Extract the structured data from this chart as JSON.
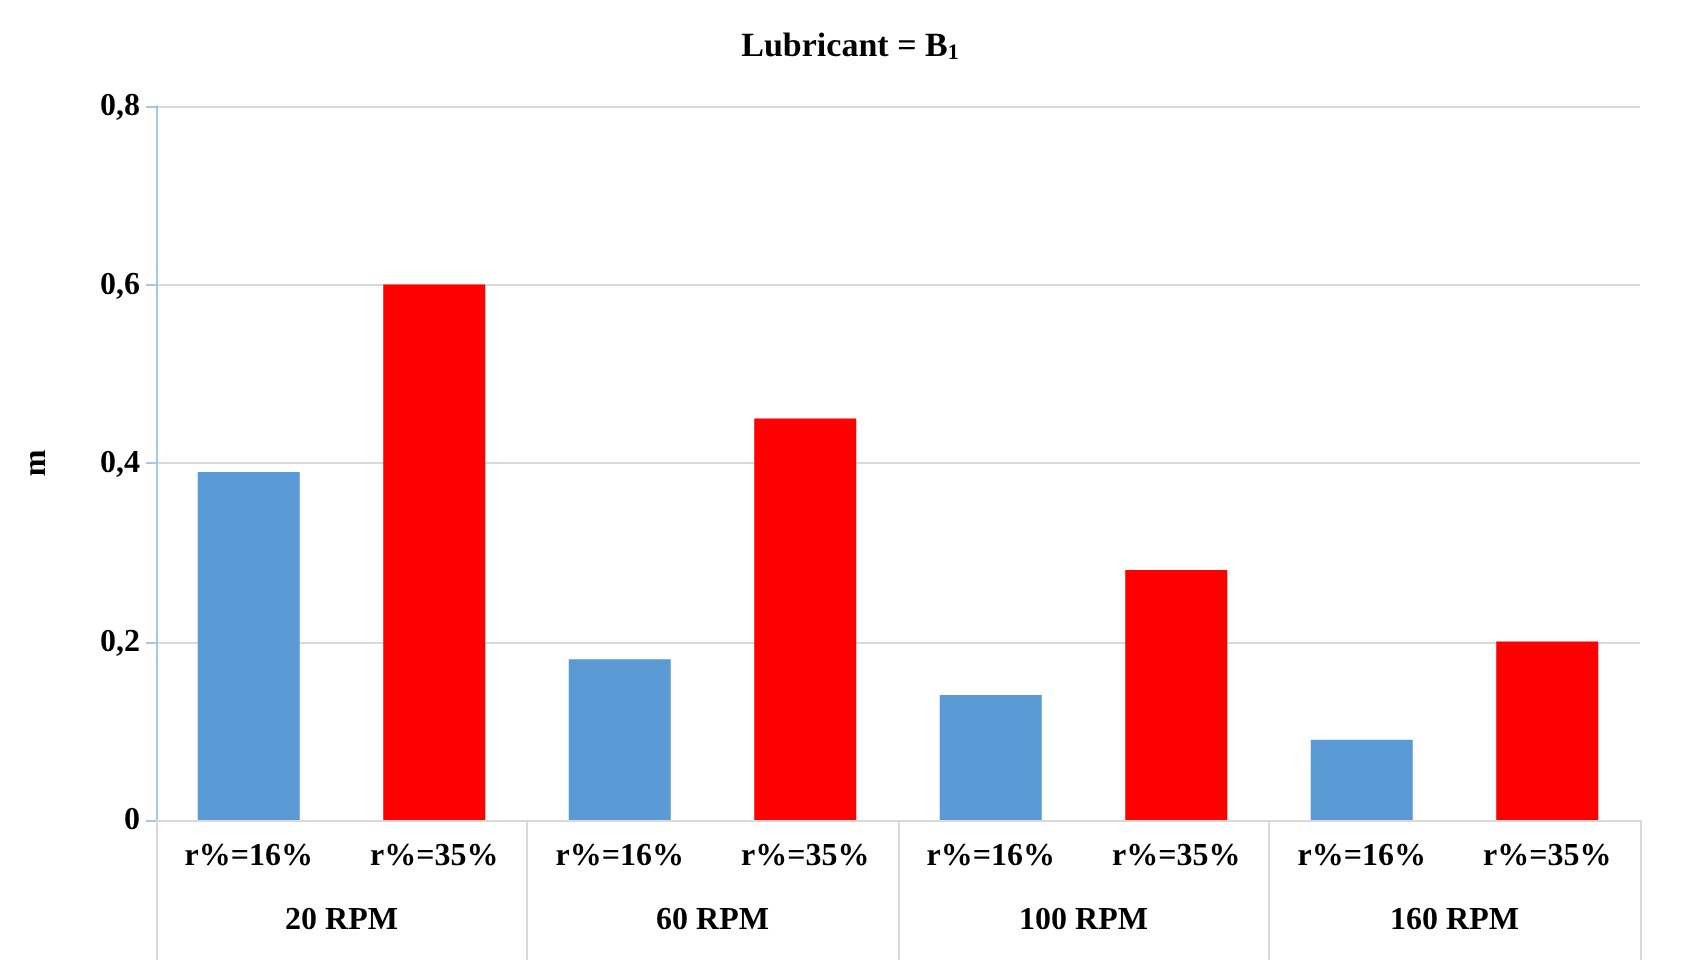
{
  "chart_data": {
    "type": "bar",
    "title": "Lubricant = B$_{1}$",
    "ylabel": "m",
    "categories": [
      "r%=16%",
      "r%=35%",
      "r%=16%",
      "r%=35%",
      "r%=16%",
      "r%=35%",
      "r%=16%",
      "r%=35%"
    ],
    "values": [
      0.39,
      0.6,
      0.18,
      0.45,
      0.14,
      0.28,
      0.09,
      0.2
    ],
    "colors": [
      "#5b9bd5",
      "#ff0000",
      "#5b9bd5",
      "#ff0000",
      "#5b9bd5",
      "#ff0000",
      "#5b9bd5",
      "#ff0000"
    ],
    "annotations": [
      "20 RPM",
      "60 RPM",
      "100 RPM",
      "160 RPM"
    ],
    "ylim": [
      0,
      0.8
    ],
    "yticks": [
      {
        "value": 0,
        "label": "0"
      },
      {
        "value": 0.2,
        "label": "0,2"
      },
      {
        "value": 0.4,
        "label": "0,4"
      },
      {
        "value": 0.6,
        "label": "0,6"
      },
      {
        "value": 0.8,
        "label": "0,8"
      }
    ],
    "grid": "y"
  }
}
